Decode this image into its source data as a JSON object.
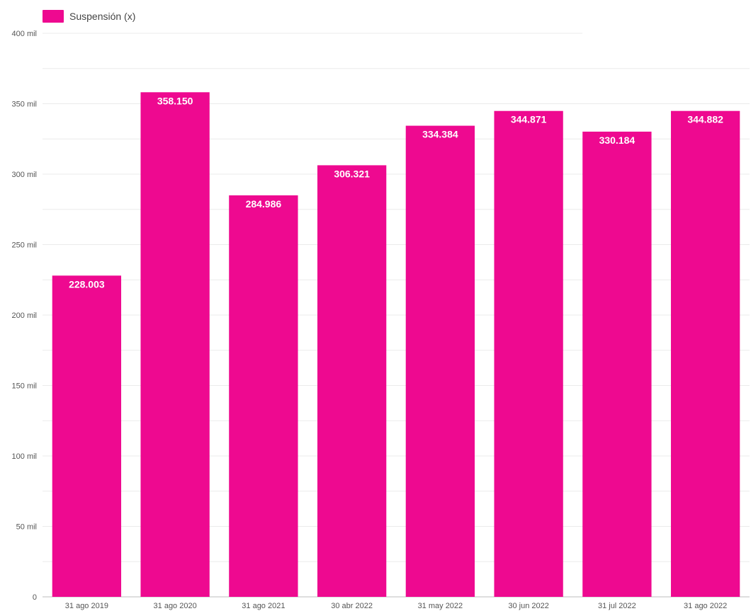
{
  "chart_data": {
    "type": "bar",
    "categories": [
      "31 ago 2019",
      "31 ago 2020",
      "31 ago 2021",
      "30 abr 2022",
      "31 may 2022",
      "30 jun 2022",
      "31 jul 2022",
      "31 ago 2022"
    ],
    "series": [
      {
        "name": "Suspensión (x)",
        "color": "#ee0990",
        "values": [
          228003,
          358150,
          284986,
          306321,
          334384,
          344871,
          330184,
          344882
        ],
        "value_labels": [
          "228.003",
          "358.150",
          "284.986",
          "306.321",
          "334.384",
          "344.871",
          "330.184",
          "344.882"
        ]
      }
    ],
    "ylim": [
      0,
      400000
    ],
    "yticks": [
      0,
      50000,
      100000,
      150000,
      200000,
      250000,
      300000,
      350000,
      400000
    ],
    "ytick_labels": [
      "0",
      "50 mil",
      "100 mil",
      "150 mil",
      "200 mil",
      "250 mil",
      "300 mil",
      "350 mil",
      "400 mil"
    ],
    "grid": true,
    "legend": "top-left",
    "title": "",
    "xlabel": "",
    "ylabel": ""
  }
}
